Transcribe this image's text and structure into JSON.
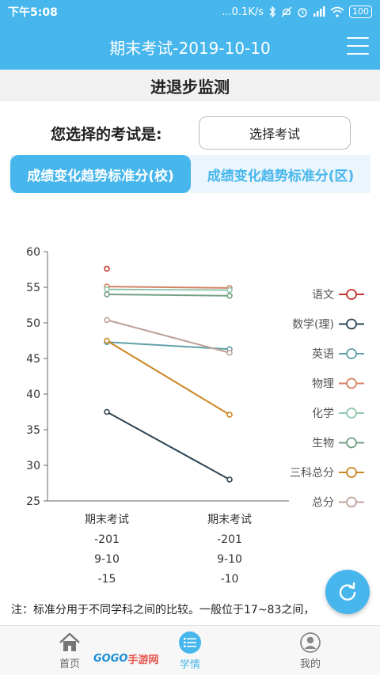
{
  "status_bar": {
    "time": "下午5:08",
    "network_speed": "...0.1K/s",
    "battery": "100"
  },
  "app_bar": {
    "title": "期末考试-2019-10-10"
  },
  "section": {
    "title": "进退步监测"
  },
  "exam_select": {
    "label": "您选择的考试是:",
    "button_label": "选择考试"
  },
  "tabs": [
    {
      "label": "成绩变化趋势标准分(校)",
      "active": true
    },
    {
      "label": "成绩变化趋势标准分(区)",
      "active": false
    }
  ],
  "chart_data": {
    "type": "line",
    "categories": [
      [
        "期末考试",
        "-201",
        "9-10",
        "-15"
      ],
      [
        "期末考试",
        "-201",
        "9-10",
        "-10"
      ]
    ],
    "ylim": [
      25,
      60
    ],
    "y_ticks": [
      60,
      55,
      50,
      45,
      40,
      35,
      30,
      25
    ],
    "grid": false,
    "legend_position": "right",
    "series": [
      {
        "name": "语文",
        "color": "#c23531",
        "values": [
          57.6,
          null
        ]
      },
      {
        "name": "数学(理)",
        "color": "#2f4554",
        "values": [
          37.5,
          28.0
        ]
      },
      {
        "name": "英语",
        "color": "#61a0a8",
        "values": [
          47.3,
          46.3
        ]
      },
      {
        "name": "物理",
        "color": "#d48265",
        "values": [
          55.1,
          54.9
        ]
      },
      {
        "name": "化学",
        "color": "#91c7ae",
        "values": [
          54.7,
          54.6
        ]
      },
      {
        "name": "生物",
        "color": "#749f83",
        "values": [
          54.0,
          53.8
        ]
      },
      {
        "name": "三科总分",
        "color": "#ca8622",
        "values": [
          47.5,
          37.1
        ]
      },
      {
        "name": "总分",
        "color": "#bda29a",
        "values": [
          50.4,
          45.8
        ]
      }
    ]
  },
  "note": "注：标准分用于不同学科之间的比较。一般位于17~83之间，",
  "fab": {
    "icon": "refresh-icon"
  },
  "bottom_nav": [
    {
      "label": "首页",
      "icon": "home-icon"
    },
    {
      "label": "学情",
      "icon": "list-icon",
      "active": true
    },
    {
      "label": "我的",
      "icon": "user-icon"
    }
  ],
  "watermark": {
    "part1": "GOGO",
    "part2": "手游网"
  }
}
